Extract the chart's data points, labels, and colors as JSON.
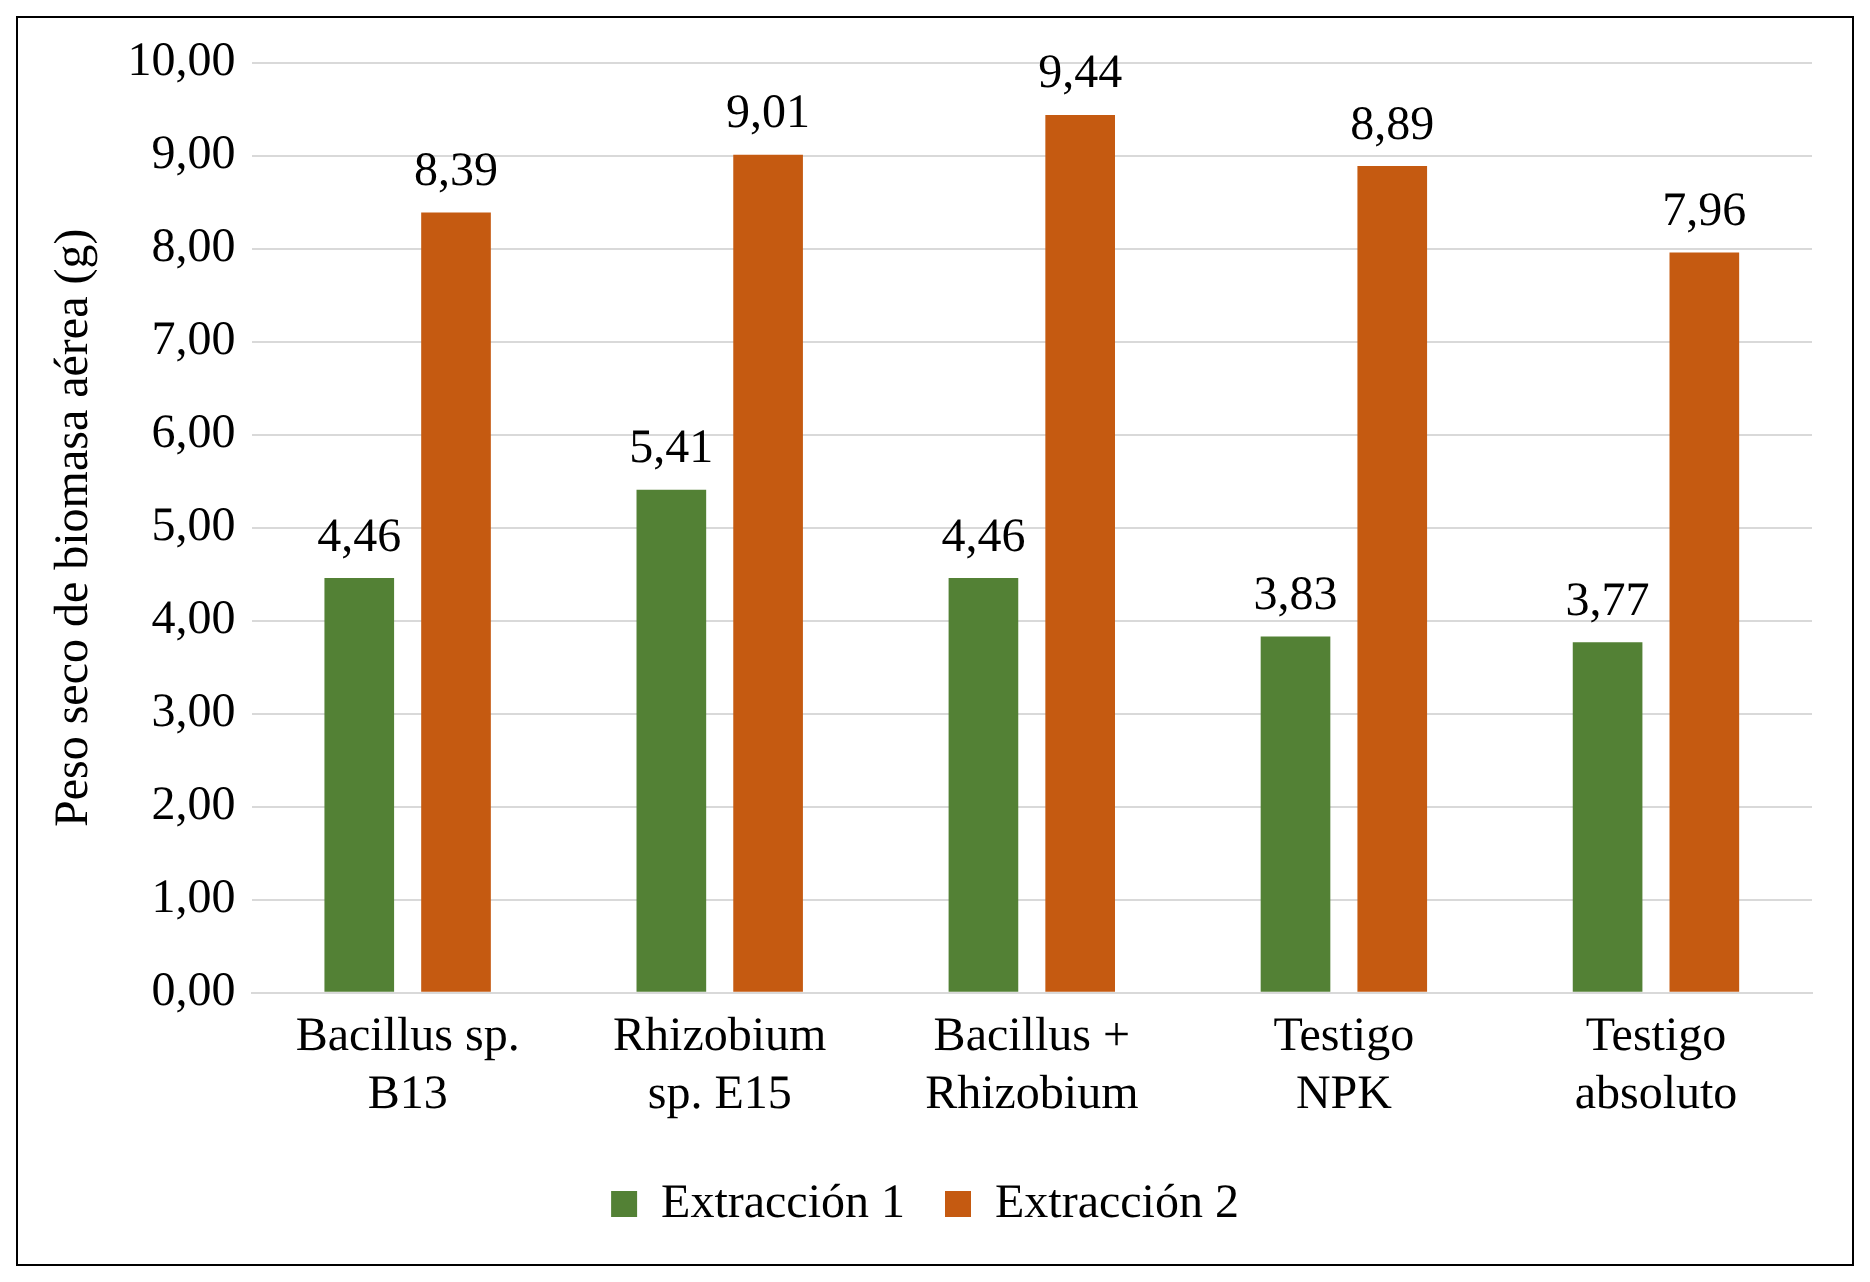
{
  "chart_data": {
    "type": "bar",
    "ylabel": "Peso seco de biomasa aérea (g)",
    "categories": [
      "Bacillus sp.\nB13",
      "Rhizobium\nsp. E15",
      "Bacillus +\nRhizobium",
      "Testigo\nNPK",
      "Testigo\nabsoluto"
    ],
    "series": [
      {
        "name": "Extracción 1",
        "color": "#538135",
        "values": [
          4.46,
          5.41,
          4.46,
          3.83,
          3.77
        ],
        "value_labels": [
          "4,46",
          "5,41",
          "4,46",
          "3,83",
          "3,77"
        ]
      },
      {
        "name": "Extracción 2",
        "color": "#c55a11",
        "values": [
          8.39,
          9.01,
          9.44,
          8.89,
          7.96
        ],
        "value_labels": [
          "8,39",
          "9,01",
          "9,44",
          "8,89",
          "7,96"
        ]
      }
    ],
    "ylim": [
      0,
      10
    ],
    "yticks": [
      {
        "value": 0,
        "label": "0,00"
      },
      {
        "value": 1,
        "label": "1,00"
      },
      {
        "value": 2,
        "label": "2,00"
      },
      {
        "value": 3,
        "label": "3,00"
      },
      {
        "value": 4,
        "label": "4,00"
      },
      {
        "value": 5,
        "label": "5,00"
      },
      {
        "value": 6,
        "label": "6,00"
      },
      {
        "value": 7,
        "label": "7,00"
      },
      {
        "value": 8,
        "label": "8,00"
      },
      {
        "value": 9,
        "label": "9,00"
      },
      {
        "value": 10,
        "label": "10,00"
      }
    ],
    "grid": "y",
    "legend": "bottom"
  }
}
